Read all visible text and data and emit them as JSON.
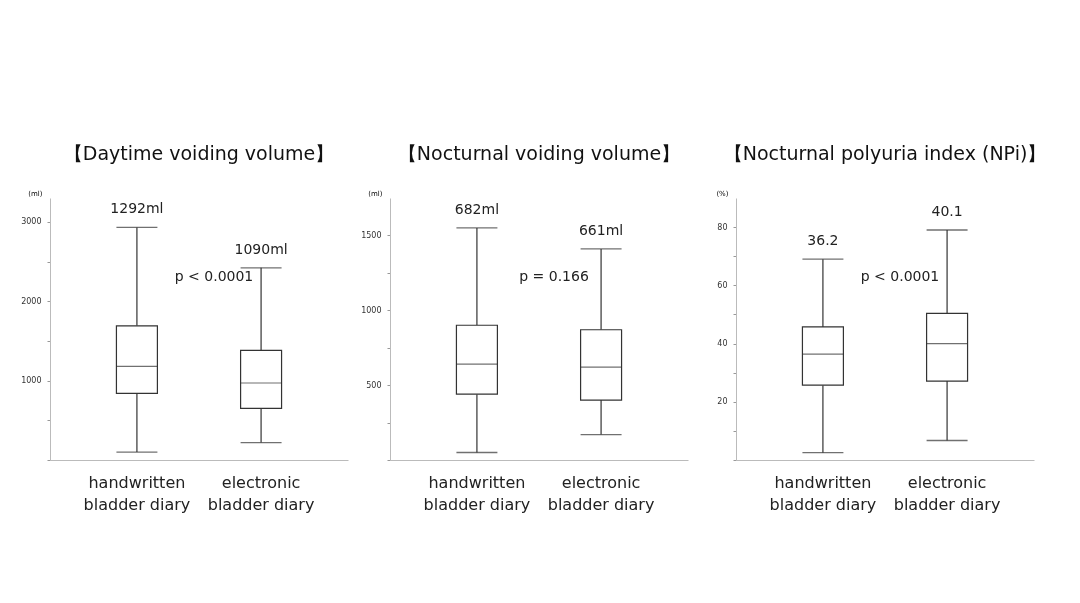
{
  "chart_data": [
    {
      "type": "box",
      "title": "【Daytime voiding volume】",
      "ylabel": "(ml)",
      "categories": [
        "handwritten bladder diary",
        "electronic bladder diary"
      ],
      "boxes": [
        {
          "low": 100,
          "q1": 840,
          "median": 1180,
          "q3": 1690,
          "high": 2930
        },
        {
          "low": 220,
          "q1": 650,
          "median": 970,
          "q3": 1380,
          "high": 2420
        }
      ],
      "ylim": [
        0,
        3300
      ],
      "yticks": [
        {
          "value": 0,
          "label": null
        },
        {
          "value": 500,
          "label": null
        },
        1000,
        {
          "value": 1500,
          "label": null
        },
        2000,
        {
          "value": 2500,
          "label": null
        },
        3000
      ],
      "annotations": [
        {
          "text": "1292ml",
          "x": "handwritten bladder diary",
          "y": 2930
        },
        {
          "text": "1090ml",
          "x": "electronic bladder diary",
          "y": 2420
        },
        "p < 0.0001"
      ]
    },
    {
      "type": "box",
      "title": "【Nocturnal voiding volume】",
      "ylabel": "(ml)",
      "categories": [
        "handwritten bladder diary",
        "electronic bladder diary"
      ],
      "boxes": [
        {
          "low": 50,
          "q1": 440,
          "median": 640,
          "q3": 900,
          "high": 1550
        },
        {
          "low": 170,
          "q1": 400,
          "median": 620,
          "q3": 870,
          "high": 1410
        }
      ],
      "ylim": [
        0,
        1750
      ],
      "yticks": [
        {
          "value": 0,
          "label": null
        },
        {
          "value": 250,
          "label": null
        },
        500,
        {
          "value": 750,
          "label": null
        },
        1000,
        {
          "value": 1250,
          "label": null
        },
        1500
      ],
      "annotations": [
        {
          "text": "682ml",
          "x": "handwritten bladder diary",
          "y": 1550
        },
        {
          "text": "661ml",
          "x": "electronic bladder diary",
          "y": 1410
        },
        "p = 0.166"
      ]
    },
    {
      "type": "box",
      "title": "【Nocturnal polyuria index (NPi)】",
      "ylabel": "(%)",
      "categories": [
        "handwritten bladder diary",
        "electronic bladder diary"
      ],
      "boxes": [
        {
          "low": 2.5,
          "q1": 25.7,
          "median": 36.4,
          "q3": 45.7,
          "high": 69
        },
        {
          "low": 6.7,
          "q1": 27.1,
          "median": 40,
          "q3": 50.4,
          "high": 79
        }
      ],
      "ylim": [
        0,
        90
      ],
      "yticks": [
        {
          "value": 0,
          "label": null
        },
        {
          "value": 10,
          "label": null
        },
        20,
        {
          "value": 30,
          "label": null
        },
        40,
        {
          "value": 50,
          "label": null
        },
        60,
        {
          "value": 70,
          "label": null
        },
        80
      ],
      "annotations": [
        {
          "text": "36.2",
          "x": "handwritten bladder diary",
          "y": 69
        },
        {
          "text": "40.1",
          "x": "electronic bladder diary",
          "y": 79
        },
        "p < 0.0001"
      ]
    }
  ]
}
